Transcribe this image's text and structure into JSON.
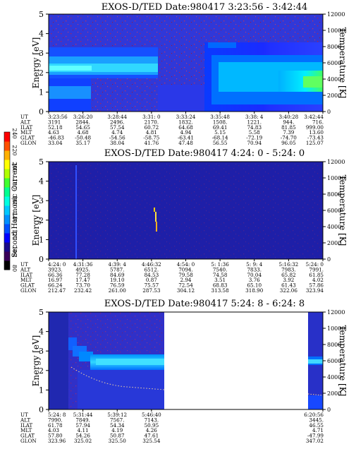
{
  "colorbar": {
    "label": "Second Harmonic Current",
    "ticks": [
      "240",
      "220",
      "200",
      "180",
      "160",
      "140",
      "120",
      "100",
      "80"
    ],
    "colors": [
      "#000000",
      "#3a005a",
      "#1a0a8a",
      "#0000ff",
      "#0050ff",
      "#0090ff",
      "#00c8ff",
      "#00ffe0",
      "#00ff90",
      "#40ff30",
      "#b0ff00",
      "#ffff00",
      "#ffb000",
      "#ff5000",
      "#ff0000"
    ]
  },
  "chart_data": [
    {
      "type": "heatmap",
      "title": "EXOS-D/TED   Date:980417  3:23:56 - 3:42:44",
      "ylabel": "Energy [eV]",
      "y2label": "Temperature [K]",
      "ylim": [
        0,
        5
      ],
      "y2lim": [
        0,
        12000
      ],
      "yticks": [
        "0",
        "1",
        "2",
        "3",
        "4",
        "5"
      ],
      "y2ticks": [
        "0",
        "2000",
        "4000",
        "6000",
        "8000",
        "10000",
        "12000"
      ],
      "row_labels": [
        "UT",
        "ALT",
        "ILAT",
        "MLT",
        "GLAT",
        "GLON"
      ],
      "columns": [
        [
          "3:23:56",
          "3191",
          "52.18",
          "4.63",
          "-46.83",
          "33.04"
        ],
        [
          "3:26:20",
          "2844.",
          "54.65",
          "4.68",
          "-50.48",
          "35.17"
        ],
        [
          "3:28:44",
          "2496.",
          "57.54",
          "4.74",
          "-54.56",
          "38.04"
        ],
        [
          "3:31: 0",
          "2170.",
          "60.72",
          "4.81",
          "-58.75",
          "41.76"
        ],
        [
          "3:33:24",
          "1832.",
          "64.68",
          "4.94",
          "-63.41",
          "47.48"
        ],
        [
          "3:35:48",
          "1508.",
          "69.41",
          "5.15",
          "-68.14",
          "56.55"
        ],
        [
          "3:38: 4",
          "1221.",
          "74.83",
          "5.58",
          "-72.19",
          "70.94"
        ],
        [
          "3:40:28",
          "944.",
          "81.85",
          "7.39",
          "-74.70",
          "96.05"
        ],
        [
          "3:42:44",
          "716.",
          "999.00",
          "13.60",
          "-73.43",
          "125.07"
        ]
      ]
    },
    {
      "type": "heatmap",
      "title": "EXOS-D/TED   Date:980417  4:24: 0 - 5:24: 0",
      "ylabel": "Energy [eV]",
      "y2label": "Temperature [K]",
      "ylim": [
        0,
        5
      ],
      "y2lim": [
        0,
        12000
      ],
      "yticks": [
        "0",
        "1",
        "2",
        "3",
        "4",
        "5"
      ],
      "y2ticks": [
        "0",
        "2000",
        "4000",
        "6000",
        "8000",
        "10000",
        "12000"
      ],
      "row_labels": [
        "UT",
        "ALT",
        "ILAT",
        "MLT",
        "GLAT",
        "GLON"
      ],
      "columns": [
        [
          "4:24: 0",
          "3923.",
          "66.36",
          "16.97",
          "66.24",
          "212.47"
        ],
        [
          "4:31:36",
          "4925.",
          "77.28",
          "17.47",
          "73.70",
          "232.42"
        ],
        [
          "4:39: 4",
          "5787.",
          "84.69",
          "19.10",
          "76.59",
          "261.00"
        ],
        [
          "4:46:32",
          "6512.",
          "84.53",
          "0.87",
          "75.57",
          "287.53"
        ],
        [
          "4:54: 0",
          "7094.",
          "79.58",
          "2.94",
          "72.54",
          "304.12"
        ],
        [
          "5: 1:36",
          "7540.",
          "74.58",
          "3.51",
          "68.83",
          "313.58"
        ],
        [
          "5: 9: 4",
          "7833.",
          "70.04",
          "3.76",
          "65.10",
          "318.90"
        ],
        [
          "5:16:32",
          "7983.",
          "65.82",
          "3.92",
          "61.43",
          "322.06"
        ],
        [
          "5:24: 0",
          "7991.",
          "61.85",
          "4.02",
          "57.86",
          "323.94"
        ]
      ]
    },
    {
      "type": "heatmap",
      "title": "EXOS-D/TED   Date:980417  5:24: 8 - 6:24: 8",
      "ylabel": "Energy [eV]",
      "y2label": "Temperature [K]",
      "ylim": [
        0,
        5
      ],
      "y2lim": [
        0,
        12000
      ],
      "yticks": [
        "0",
        "1",
        "2",
        "3",
        "4",
        "5"
      ],
      "y2ticks": [
        "0",
        "2000",
        "4000",
        "6000",
        "8000",
        "10000",
        "12000"
      ],
      "row_labels": [
        "UT",
        "ALT",
        "ILAT",
        "MLT",
        "GLAT",
        "GLON"
      ],
      "columns": [
        [
          "5:24: 8",
          "7990.",
          "61.78",
          "4.03",
          "57.80",
          "323.96"
        ],
        [
          "5:31:44",
          "7849.",
          "57.94",
          "4.11",
          "54.26",
          "325.02"
        ],
        [
          "5:39:12",
          "7567.",
          "54.34",
          "4.19",
          "50.87",
          "325.50"
        ],
        [
          "5:46:40",
          "7143.",
          "50.95",
          "4.26",
          "47.61",
          "325.54"
        ],
        null,
        null,
        null,
        null,
        [
          "6:20:56",
          "3445.",
          "46.55",
          "4.71",
          "-47.99",
          "347.02"
        ]
      ]
    }
  ]
}
